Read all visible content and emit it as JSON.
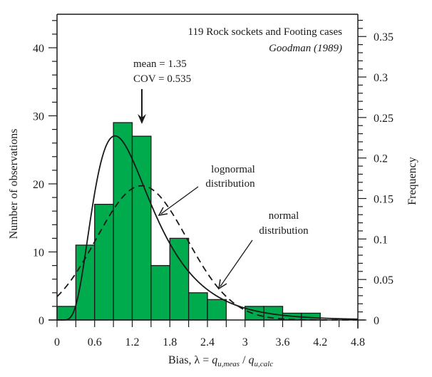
{
  "chart_data": {
    "type": "bar",
    "subtype": "histogram",
    "title": "119 Rock sockets and Footing cases",
    "subtitle": "Goodman (1989)",
    "xlabel": "Bias, λ = q_u,meas / q_u,calc",
    "xlabel_parts": {
      "prefix": "Bias, λ = ",
      "q1": "q",
      "sub1": "u,meas",
      "sep": " / ",
      "q2": "q",
      "sub2": "u,calc"
    },
    "ylabel": "Number of observations",
    "y2label": "Frequency",
    "xlim": [
      0,
      4.8
    ],
    "ylim": [
      0,
      44
    ],
    "y2lim": [
      0,
      0.37
    ],
    "total_count": 119,
    "x_ticks": [
      0,
      0.6,
      1.2,
      1.8,
      2.4,
      3,
      3.6,
      4.2,
      4.8
    ],
    "x_tick_labels": [
      "0",
      "0.6",
      "1.2",
      "1.8",
      "2.4",
      "3",
      "3.6",
      "4.2",
      "4.8"
    ],
    "y_ticks": [
      0,
      10,
      20,
      30,
      40
    ],
    "y_tick_labels": [
      "0",
      "10",
      "20",
      "30",
      "40"
    ],
    "y_minor_step": 2,
    "y2_ticks": [
      0,
      0.05,
      0.1,
      0.15,
      0.2,
      0.25,
      0.3,
      0.35
    ],
    "y2_tick_labels": [
      "0",
      "0.05",
      "0.1",
      "0.15",
      "0.2",
      "0.25",
      "0.3",
      "0.35"
    ],
    "y2_minor_step": 0.01,
    "bin_width": 0.3,
    "bins": [
      {
        "x0": 0.0,
        "x1": 0.3,
        "count": 2
      },
      {
        "x0": 0.3,
        "x1": 0.6,
        "count": 11
      },
      {
        "x0": 0.6,
        "x1": 0.9,
        "count": 17
      },
      {
        "x0": 0.9,
        "x1": 1.2,
        "count": 29
      },
      {
        "x0": 1.2,
        "x1": 1.5,
        "count": 27
      },
      {
        "x0": 1.5,
        "x1": 1.8,
        "count": 8
      },
      {
        "x0": 1.8,
        "x1": 2.1,
        "count": 12
      },
      {
        "x0": 2.1,
        "x1": 2.4,
        "count": 4
      },
      {
        "x0": 2.4,
        "x1": 2.7,
        "count": 3
      },
      {
        "x0": 2.7,
        "x1": 3.0,
        "count": 0
      },
      {
        "x0": 3.0,
        "x1": 3.3,
        "count": 2
      },
      {
        "x0": 3.3,
        "x1": 3.6,
        "count": 2
      },
      {
        "x0": 3.6,
        "x1": 3.9,
        "count": 1
      },
      {
        "x0": 3.9,
        "x1": 4.2,
        "count": 1
      }
    ],
    "series": [
      {
        "name": "lognormal distribution",
        "style": "solid",
        "mean": 1.35,
        "cov": 0.535
      },
      {
        "name": "normal distribution",
        "style": "dashed",
        "mean": 1.35,
        "cov": 0.535
      }
    ],
    "bar_color": "#00ab4e",
    "annotations": {
      "mean_line": "mean = 1.35",
      "cov_line": "COV = 0.535",
      "mean_arrow_x": 1.35,
      "lognormal_label_1": "lognormal",
      "lognormal_label_2": "distribution",
      "normal_label_1": "normal",
      "normal_label_2": "distribution"
    },
    "grid": false,
    "legend": "none"
  }
}
